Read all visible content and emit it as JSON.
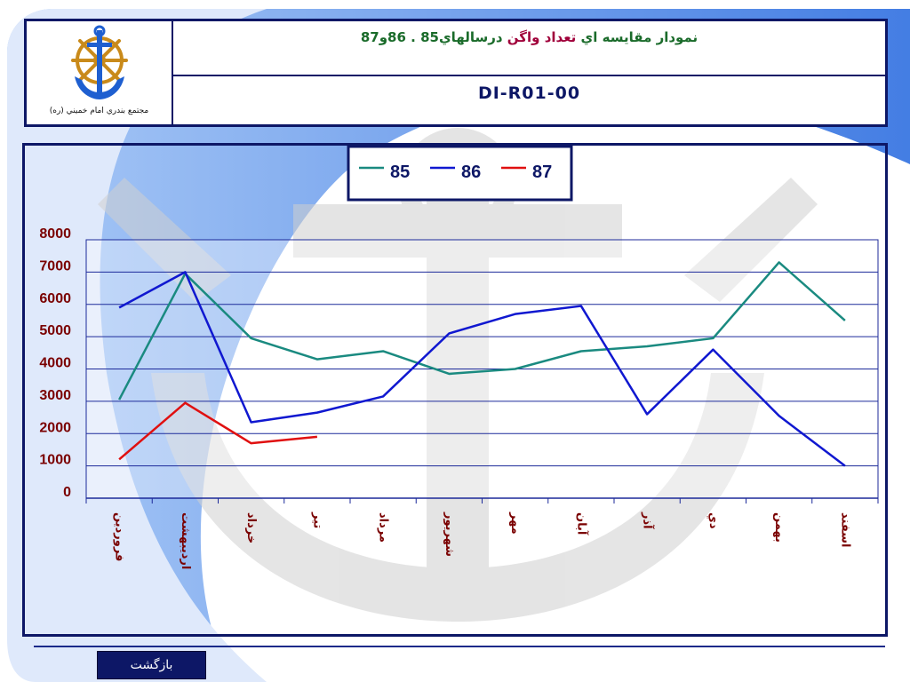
{
  "header": {
    "logo_caption": "مجتمع بندري امام خميني (ره)",
    "title_parts": [
      {
        "text": "نمودار مقايسه اي ",
        "color": "#1a6b2a"
      },
      {
        "text": "تعداد واگن",
        "color": "#a0003a"
      },
      {
        "text": " درسالهاي85 . 86و87",
        "color": "#1a6b2a"
      }
    ],
    "code": "DI-R01-00"
  },
  "colors": {
    "frame": "#0d1766",
    "grid": "#1c2a9a",
    "axis_text": "#7a0000",
    "swoosh_blue": "#2f6fe0",
    "watermark": "#cfcfcf"
  },
  "chart_data": {
    "type": "line",
    "categories": [
      "فروردين",
      "ارديبهشت",
      "خرداد",
      "تير",
      "مرداد",
      "شهريور",
      "مهر",
      "آبان",
      "آذر",
      "دي",
      "بهمن",
      "اسفند"
    ],
    "tick_labels": [
      "8000",
      "7000",
      "6000",
      "5000",
      "4000",
      "3000",
      "2000",
      "1000",
      "0"
    ],
    "ylim": [
      0,
      8000
    ],
    "y_step": 1000,
    "grid": true,
    "legend_position": "top-center",
    "series": [
      {
        "name": "85",
        "color": "#1a8a80",
        "values": [
          3050,
          6950,
          4950,
          4300,
          4550,
          3850,
          4000,
          4550,
          4700,
          4950,
          7300,
          5500
        ]
      },
      {
        "name": "86",
        "color": "#1018d0",
        "values": [
          5900,
          7000,
          2350,
          2650,
          3150,
          5100,
          5700,
          5950,
          2600,
          4600,
          2550,
          1000
        ]
      },
      {
        "name": "87",
        "color": "#e01010",
        "values": [
          1200,
          2950,
          1700,
          1900,
          null,
          null,
          null,
          null,
          null,
          null,
          null,
          null
        ]
      }
    ]
  },
  "footer": {
    "back_label": "بازگشت"
  }
}
